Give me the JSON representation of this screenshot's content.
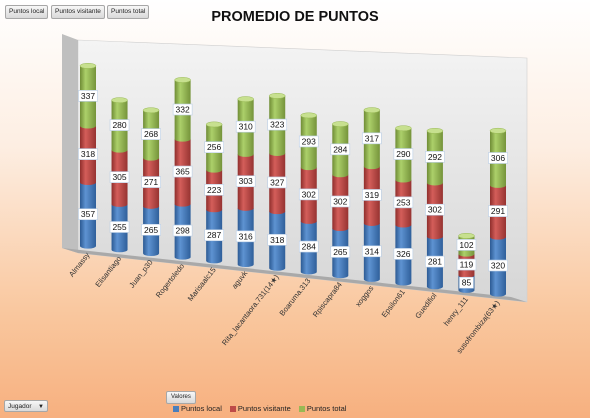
{
  "field_buttons": [
    "Puntos local",
    "Puntos visitante",
    "Puntos total"
  ],
  "filter": {
    "label": "Jugador"
  },
  "values_button": "Valores",
  "colors": {
    "local": "#4a7ebb",
    "visitante": "#be4b48",
    "total": "#98b954"
  },
  "chart_data": {
    "type": "bar",
    "stacked": true,
    "style": "3d-cylinder",
    "title": "PROMEDIO DE PUNTOS",
    "xlabel": "",
    "ylabel": "",
    "legend_position": "bottom",
    "categories": [
      "Almassy",
      "Elisantiago",
      "Juan_p30",
      "Rogertoledo",
      "Marisaalc15",
      "aguvk",
      "Rita_lacantaora.731(14★)",
      "Boaruma.313",
      "Rpiscapra84",
      "xoggos",
      "Epsilon61",
      "Guedifiol",
      "henry_111",
      "susofrombiza(63★)"
    ],
    "series": [
      {
        "name": "Puntos local",
        "values": [
          357,
          255,
          265,
          298,
          287,
          316,
          318,
          284,
          265,
          314,
          326,
          281,
          85,
          320
        ]
      },
      {
        "name": "Puntos visitante",
        "values": [
          318,
          305,
          271,
          365,
          223,
          303,
          327,
          302,
          302,
          319,
          253,
          302,
          119,
          291
        ]
      },
      {
        "name": "Puntos total",
        "values": [
          337,
          280,
          268,
          332,
          256,
          310,
          323,
          293,
          284,
          317,
          290,
          292,
          102,
          306
        ]
      }
    ]
  }
}
